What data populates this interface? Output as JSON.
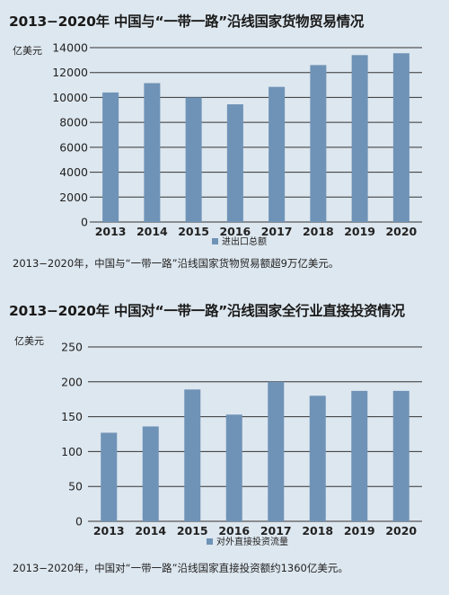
{
  "chart_data": [
    {
      "type": "bar",
      "title": "2013−2020年 中国与“一带一路”沿线国家货物贸易情况",
      "ylabel": "亿美元",
      "xlabel": "",
      "categories": [
        "2013",
        "2014",
        "2015",
        "2016",
        "2017",
        "2018",
        "2019",
        "2020"
      ],
      "series": [
        {
          "name": "进出口总额",
          "values": [
            10400,
            11150,
            10000,
            9450,
            10850,
            12600,
            13400,
            13550
          ]
        }
      ],
      "ylim": [
        0,
        14000
      ],
      "yticks": [
        0,
        2000,
        4000,
        6000,
        8000,
        10000,
        12000,
        14000
      ],
      "grid": true,
      "legend": "bottom-center",
      "caption": "2013−2020年，中国与“一带一路”沿线国家货物贸易额超9万亿美元。"
    },
    {
      "type": "bar",
      "title": "2013−2020年 中国对“一带一路”沿线国家全行业直接投资情况",
      "ylabel": "亿美元",
      "xlabel": "",
      "categories": [
        "2013",
        "2014",
        "2015",
        "2016",
        "2017",
        "2018",
        "2019",
        "2020"
      ],
      "series": [
        {
          "name": "对外直接投资流量",
          "values": [
            127,
            136,
            189,
            153,
            200,
            180,
            187,
            187
          ]
        }
      ],
      "ylim": [
        0,
        250
      ],
      "yticks": [
        0,
        50,
        100,
        150,
        200,
        250
      ],
      "grid": true,
      "legend": "bottom-center",
      "caption": "2013−2020年，中国对“一带一路”沿线国家直接投资额约1360亿美元。"
    }
  ],
  "colors": {
    "bar": "#6f93b7",
    "background": "#dde7ef",
    "grid": "#333333"
  }
}
